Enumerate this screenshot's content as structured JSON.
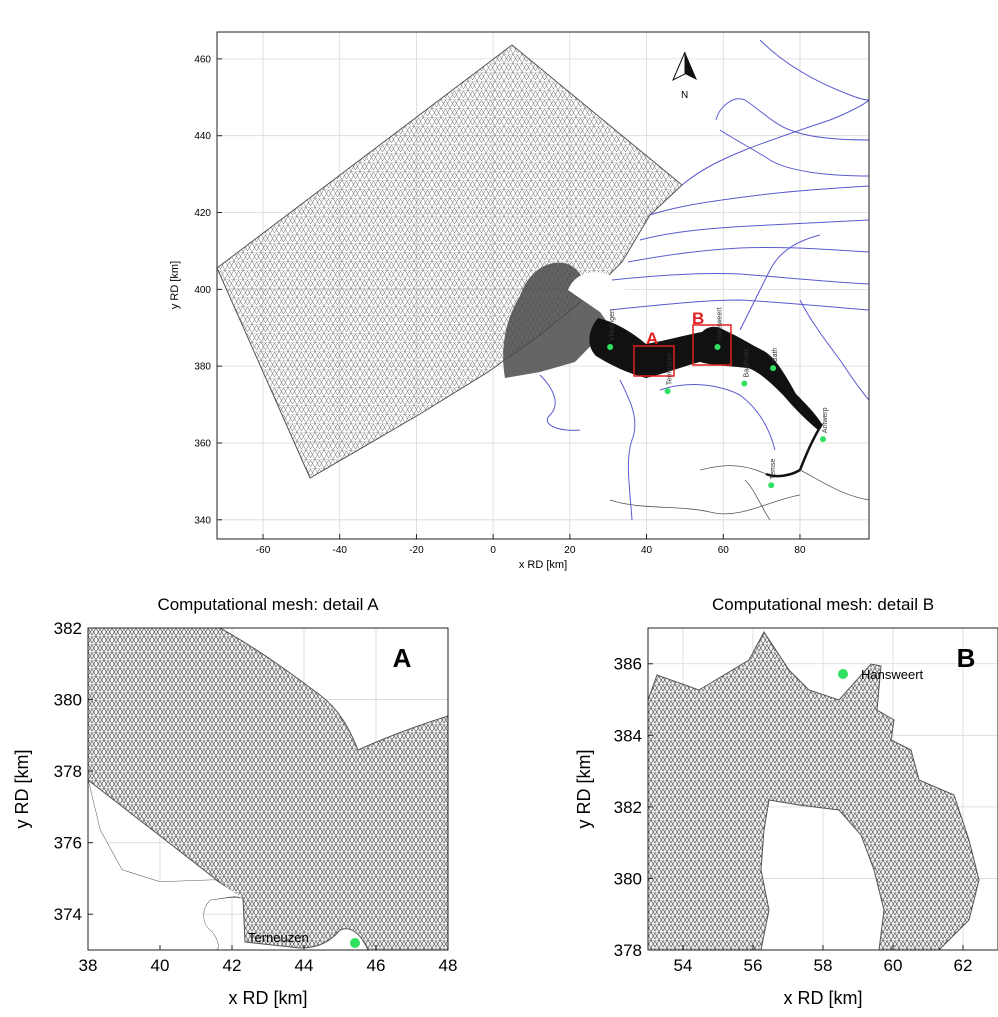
{
  "main_map": {
    "xlabel": "x RD [km]",
    "ylabel": "y RD [km]",
    "xlim": [
      -72,
      98
    ],
    "ylim": [
      335,
      467
    ],
    "xticks": [
      "-60",
      "-40",
      "-20",
      "0",
      "20",
      "40",
      "60",
      "80"
    ],
    "yticks": [
      "340",
      "360",
      "380",
      "400",
      "420",
      "440",
      "460"
    ],
    "north_label": "N",
    "box_labels": [
      "A",
      "B"
    ],
    "stations": [
      {
        "name": "Vlissingen",
        "x": 30.5,
        "y": 385
      },
      {
        "name": "Terneuzen",
        "x": 45.5,
        "y": 373.5
      },
      {
        "name": "Hansweert",
        "x": 58.5,
        "y": 385
      },
      {
        "name": "Bath",
        "x": 73,
        "y": 379.5
      },
      {
        "name": "Baalhoek",
        "x": 65.5,
        "y": 375.5
      },
      {
        "name": "Antwerp",
        "x": 86,
        "y": 361
      },
      {
        "name": "Temse",
        "x": 72.5,
        "y": 349
      }
    ]
  },
  "detail_a": {
    "title": "Computational mesh: detail A",
    "badge": "A",
    "xlabel": "x RD [km]",
    "ylabel": "y RD [km]",
    "xlim": [
      38,
      48
    ],
    "ylim": [
      373,
      382
    ],
    "xticks": [
      "38",
      "40",
      "42",
      "44",
      "46",
      "48"
    ],
    "yticks": [
      "374",
      "376",
      "378",
      "380",
      "382"
    ],
    "station_label": "Terneuzen"
  },
  "detail_b": {
    "title": "Computational mesh: detail B",
    "badge": "B",
    "xlabel": "x RD [km]",
    "ylabel": "y RD [km]",
    "xlim": [
      53,
      63
    ],
    "ylim": [
      378,
      387
    ],
    "xticks": [
      "54",
      "56",
      "58",
      "60",
      "62"
    ],
    "yticks": [
      "378",
      "380",
      "382",
      "384",
      "386"
    ],
    "station_label": "Hansweert"
  },
  "colors": {
    "mesh_line": "#555555",
    "river": "#5a5ad0",
    "box": "#e02020",
    "station": "#30e060",
    "grid": "#d8d8d8"
  }
}
